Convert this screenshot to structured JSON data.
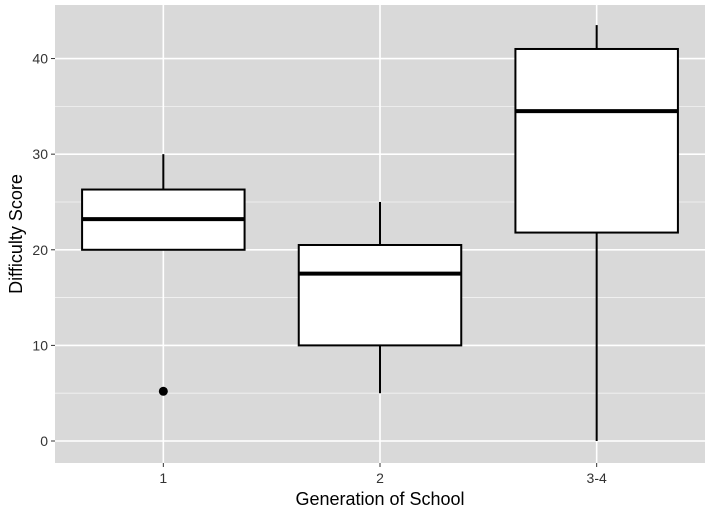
{
  "chart_data": {
    "type": "boxplot",
    "title": "",
    "xlabel": "Generation of School",
    "ylabel": "Difficulty Score",
    "categories": [
      "1",
      "2",
      "3-4"
    ],
    "ylim": [
      -2.3,
      45.6
    ],
    "yticks": [
      0,
      10,
      20,
      30,
      40
    ],
    "grid": true,
    "legend": "none",
    "boxes": [
      {
        "category": "1",
        "whisker_low": 20,
        "q1": 20,
        "median": 23.2,
        "q3": 26.3,
        "whisker_high": 30,
        "outliers": [
          5.2
        ]
      },
      {
        "category": "2",
        "whisker_low": 5,
        "q1": 10,
        "median": 17.5,
        "q3": 20.5,
        "whisker_high": 25,
        "outliers": []
      },
      {
        "category": "3-4",
        "whisker_low": 0,
        "q1": 21.8,
        "median": 34.5,
        "q3": 41,
        "whisker_high": 43.5,
        "outliers": []
      }
    ],
    "colors": {
      "panel_background": "#d9d9d9",
      "grid": "#ffffff",
      "box_fill": "#ffffff",
      "box_stroke": "#000000",
      "tick_label": "#333333",
      "axis_title": "#000000"
    }
  }
}
